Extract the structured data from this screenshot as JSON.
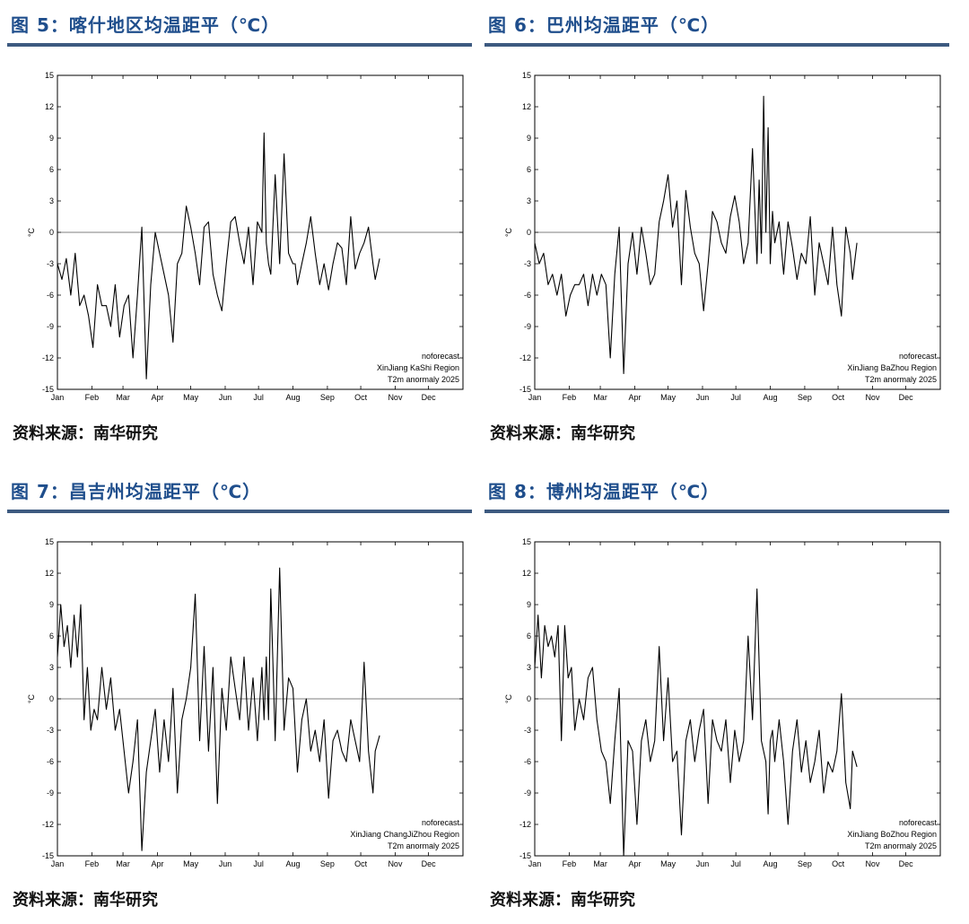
{
  "panels": [
    {
      "title": "图 5：喀什地区均温距平（℃）",
      "source": "资料来源：南华研究",
      "chart_data": {
        "type": "line",
        "ylabel": "°C",
        "ylim": [
          -15,
          15
        ],
        "yticks": [
          15,
          12,
          9,
          6,
          3,
          0,
          -3,
          -6,
          -9,
          -12,
          -15
        ],
        "xlim": [
          0,
          365
        ],
        "x_tick_positions": [
          0,
          31,
          59,
          90,
          120,
          151,
          181,
          212,
          243,
          273,
          304,
          334
        ],
        "x_tick_labels": [
          "Jan",
          "Feb",
          "Mar",
          "Apr",
          "May",
          "Jun",
          "Jul",
          "Aug",
          "Sep",
          "Oct",
          "Nov",
          "Dec"
        ],
        "annotation": [
          "noforecast",
          "XinJiang KaShi Region",
          "T2m anormaly 2025"
        ],
        "grid": false,
        "series": [
          {
            "x": [
              0,
              4,
              8,
              12,
              16,
              20,
              24,
              28,
              32,
              36,
              40,
              44,
              48,
              52,
              56,
              60,
              64,
              68,
              72,
              76,
              80,
              84,
              88,
              92,
              94,
              96,
              100,
              104,
              108,
              112,
              116,
              120,
              124,
              128,
              132,
              136,
              140,
              144,
              148,
              152,
              156,
              160,
              164,
              168,
              172,
              176,
              180,
              184,
              186,
              188,
              190,
              192,
              196,
              200,
              204,
              208,
              212,
              214,
              216,
              220,
              224,
              228,
              232,
              236,
              240,
              244,
              248,
              252,
              256,
              260,
              264,
              268,
              272,
              276,
              280,
              284,
              286,
              290
            ],
            "y": [
              -3,
              -4.5,
              -2.5,
              -6,
              -2,
              -7,
              -6,
              -8,
              -11,
              -5,
              -7,
              -7,
              -9,
              -5,
              -10,
              -7,
              -6,
              -12,
              -6,
              0.5,
              -14,
              -5,
              0,
              -2,
              -3,
              -4,
              -6,
              -10.5,
              -3,
              -2,
              2.5,
              0.5,
              -2,
              -5,
              0.5,
              1,
              -4,
              -6,
              -7.5,
              -3,
              1,
              1.5,
              -1,
              -3,
              0.5,
              -5,
              1,
              0,
              9.5,
              -1,
              -3,
              -4,
              5.5,
              -3,
              7.5,
              -2,
              -3,
              -3,
              -5,
              -3,
              -1,
              1.5,
              -2,
              -5,
              -3,
              -5.5,
              -3,
              -1,
              -1.5,
              -5,
              1.5,
              -3.5,
              -2,
              -1,
              0.5,
              -3,
              -4.5,
              -2.5
            ]
          }
        ]
      }
    },
    {
      "title": "图 6：巴州均温距平（℃）",
      "source": "资料来源：南华研究",
      "chart_data": {
        "type": "line",
        "ylabel": "°C",
        "ylim": [
          -15,
          15
        ],
        "yticks": [
          15,
          12,
          9,
          6,
          3,
          0,
          -3,
          -6,
          -9,
          -12,
          -15
        ],
        "xlim": [
          0,
          365
        ],
        "x_tick_positions": [
          0,
          31,
          59,
          90,
          120,
          151,
          181,
          212,
          243,
          273,
          304,
          334
        ],
        "x_tick_labels": [
          "Jan",
          "Feb",
          "Mar",
          "Apr",
          "May",
          "Jun",
          "Jul",
          "Aug",
          "Sep",
          "Oct",
          "Nov",
          "Dec"
        ],
        "annotation": [
          "noforecast",
          "XinJiang BaZhou Region",
          "T2m anormaly 2025"
        ],
        "grid": false,
        "series": [
          {
            "x": [
              0,
              4,
              8,
              12,
              16,
              20,
              24,
              28,
              32,
              36,
              40,
              44,
              48,
              52,
              56,
              60,
              64,
              68,
              72,
              76,
              80,
              84,
              88,
              92,
              96,
              100,
              104,
              108,
              112,
              116,
              120,
              124,
              128,
              132,
              136,
              140,
              144,
              148,
              152,
              156,
              160,
              164,
              168,
              172,
              176,
              180,
              184,
              188,
              192,
              196,
              200,
              202,
              204,
              206,
              208,
              210,
              212,
              214,
              216,
              220,
              224,
              228,
              232,
              236,
              240,
              244,
              248,
              252,
              256,
              260,
              264,
              268,
              272,
              276,
              280,
              284,
              286,
              290
            ],
            "y": [
              -1,
              -3,
              -2,
              -5,
              -4,
              -6,
              -4,
              -8,
              -6,
              -5,
              -5,
              -4,
              -7,
              -4,
              -6,
              -4,
              -5,
              -12,
              -4,
              0.5,
              -13.5,
              -3,
              0,
              -4,
              0.5,
              -2,
              -5,
              -4,
              1,
              3,
              5.5,
              0.5,
              3,
              -5,
              4,
              0.5,
              -2,
              -3,
              -7.5,
              -3,
              2,
              1,
              -1,
              -2,
              1.5,
              3.5,
              1,
              -3,
              -1,
              8,
              -3,
              5,
              -2,
              13,
              0,
              10,
              -3,
              2,
              -1,
              1,
              -4,
              1,
              -1.5,
              -4.5,
              -2,
              -3,
              1.5,
              -6,
              -1,
              -3,
              -5,
              0.5,
              -5,
              -8,
              0.5,
              -2,
              -4.5,
              -1
            ]
          }
        ]
      }
    },
    {
      "title": "图 7：昌吉州均温距平（℃）",
      "source": "资料来源：南华研究",
      "chart_data": {
        "type": "line",
        "ylabel": "°C",
        "ylim": [
          -15,
          15
        ],
        "yticks": [
          15,
          12,
          9,
          6,
          3,
          0,
          -3,
          -6,
          -9,
          -12,
          -15
        ],
        "xlim": [
          0,
          365
        ],
        "x_tick_positions": [
          0,
          31,
          59,
          90,
          120,
          151,
          181,
          212,
          243,
          273,
          304,
          334
        ],
        "x_tick_labels": [
          "Jan",
          "Feb",
          "Mar",
          "Apr",
          "May",
          "Jun",
          "Jul",
          "Aug",
          "Sep",
          "Oct",
          "Nov",
          "Dec"
        ],
        "annotation": [
          "noforecast",
          "XinJiang ChangJiZhou Region",
          "T2m anormaly 2025"
        ],
        "grid": false,
        "series": [
          {
            "x": [
              0,
              3,
              6,
              9,
              12,
              15,
              18,
              21,
              24,
              27,
              30,
              33,
              36,
              40,
              44,
              48,
              52,
              56,
              60,
              64,
              68,
              72,
              76,
              80,
              84,
              88,
              92,
              96,
              100,
              104,
              108,
              112,
              116,
              120,
              124,
              128,
              132,
              136,
              140,
              144,
              148,
              152,
              156,
              160,
              164,
              168,
              172,
              176,
              180,
              184,
              186,
              188,
              190,
              192,
              196,
              200,
              204,
              208,
              212,
              216,
              220,
              224,
              228,
              232,
              236,
              240,
              244,
              248,
              252,
              256,
              260,
              264,
              268,
              272,
              276,
              280,
              284,
              286,
              290
            ],
            "y": [
              4,
              9,
              5,
              7,
              3,
              8,
              4,
              9,
              -2,
              3,
              -3,
              -1,
              -2,
              3,
              -1,
              2,
              -3,
              -1,
              -5,
              -9,
              -6,
              -2,
              -14.5,
              -7,
              -4,
              -1,
              -7,
              -2,
              -6,
              1,
              -9,
              -2,
              0,
              3,
              10,
              -4,
              5,
              -5,
              3,
              -10,
              1,
              -3,
              4,
              1,
              -2,
              4,
              -3,
              2,
              -4,
              3,
              -2,
              4,
              -2,
              10.5,
              -4,
              12.5,
              -3,
              2,
              1,
              -7,
              -2,
              0,
              -5,
              -3,
              -6,
              -2,
              -9.5,
              -4,
              -3,
              -5,
              -6,
              -2,
              -4,
              -6,
              3.5,
              -5,
              -9,
              -5,
              -3.5
            ]
          }
        ]
      }
    },
    {
      "title": "图 8：博州均温距平（℃）",
      "source": "资料来源：南华研究",
      "chart_data": {
        "type": "line",
        "ylabel": "°C",
        "ylim": [
          -15,
          15
        ],
        "yticks": [
          15,
          12,
          9,
          6,
          3,
          0,
          -3,
          -6,
          -9,
          -12,
          -15
        ],
        "xlim": [
          0,
          365
        ],
        "x_tick_positions": [
          0,
          31,
          59,
          90,
          120,
          151,
          181,
          212,
          243,
          273,
          304,
          334
        ],
        "x_tick_labels": [
          "Jan",
          "Feb",
          "Mar",
          "Apr",
          "May",
          "Jun",
          "Jul",
          "Aug",
          "Sep",
          "Oct",
          "Nov",
          "Dec"
        ],
        "annotation": [
          "noforecast",
          "XinJiang BoZhou Region",
          "T2m anormaly 2025"
        ],
        "grid": false,
        "series": [
          {
            "x": [
              0,
              3,
              6,
              9,
              12,
              15,
              18,
              21,
              24,
              27,
              30,
              33,
              36,
              40,
              44,
              48,
              52,
              56,
              60,
              64,
              68,
              72,
              76,
              80,
              84,
              88,
              92,
              96,
              100,
              104,
              108,
              112,
              116,
              120,
              124,
              128,
              132,
              136,
              140,
              144,
              148,
              152,
              156,
              160,
              164,
              168,
              172,
              176,
              180,
              184,
              188,
              192,
              196,
              200,
              204,
              208,
              210,
              212,
              214,
              216,
              220,
              224,
              228,
              232,
              236,
              240,
              244,
              248,
              252,
              256,
              260,
              264,
              268,
              272,
              276,
              280,
              284,
              286,
              290
            ],
            "y": [
              3,
              8,
              2,
              7,
              5,
              6,
              4,
              7,
              -4,
              7,
              2,
              3,
              -3,
              0,
              -2,
              2,
              3,
              -2,
              -5,
              -6,
              -10,
              -4,
              1,
              -15,
              -4,
              -5,
              -12,
              -4,
              -2,
              -6,
              -4,
              5,
              -4,
              2,
              -6,
              -5,
              -13,
              -4,
              -2,
              -6,
              -3,
              -1,
              -10,
              -2,
              -4,
              -5,
              -2,
              -8,
              -3,
              -6,
              -4,
              6,
              -2,
              10.5,
              -4,
              -6,
              -11,
              -4,
              -3,
              -6,
              -2,
              -6,
              -12,
              -5,
              -2,
              -7,
              -4,
              -8,
              -6,
              -3,
              -9,
              -6,
              -7,
              -5,
              0.5,
              -8,
              -10.5,
              -5,
              -6.5
            ]
          }
        ]
      }
    }
  ]
}
